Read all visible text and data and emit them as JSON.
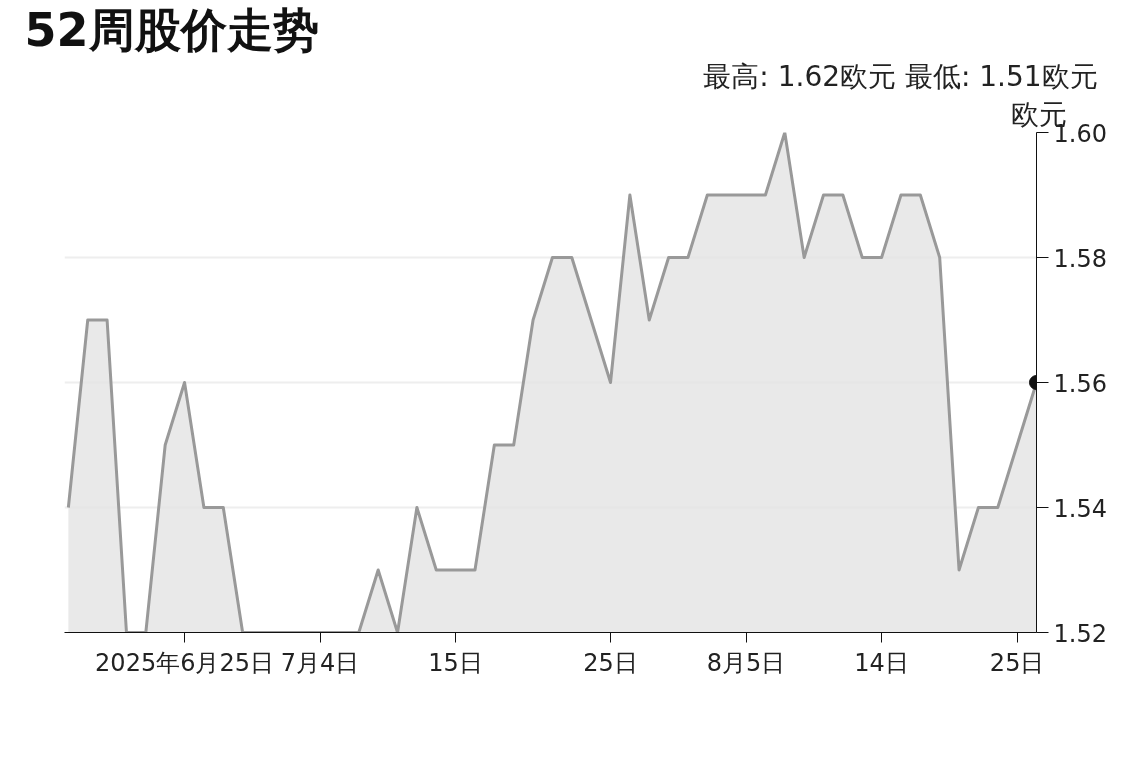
{
  "chart_data": {
    "type": "area",
    "title": "52周股价走势",
    "subtitle": "最高: 1.62欧元  最低: 1.51欧元",
    "ylabel": "欧元",
    "categories": [
      null,
      null,
      null,
      null,
      null,
      null,
      "2025年6月25日",
      null,
      null,
      null,
      null,
      null,
      null,
      "7月4日",
      null,
      null,
      null,
      null,
      null,
      null,
      "15日",
      null,
      null,
      null,
      null,
      null,
      null,
      null,
      "25日",
      null,
      null,
      null,
      null,
      null,
      null,
      "8月5日",
      null,
      null,
      null,
      null,
      null,
      null,
      "14日",
      null,
      null,
      null,
      null,
      null,
      null,
      "25日",
      null
    ],
    "series": [
      {
        "color": "#999999",
        "values": [
          1.54,
          1.57,
          1.57,
          1.52,
          1.52,
          1.55,
          1.56,
          1.54,
          1.54,
          1.52,
          1.52,
          1.52,
          1.52,
          1.52,
          1.52,
          1.52,
          1.53,
          1.52,
          1.54,
          1.53,
          1.53,
          1.53,
          1.55,
          1.55,
          1.57,
          1.58,
          1.58,
          1.57,
          1.56,
          1.59,
          1.57,
          1.58,
          1.58,
          1.59,
          1.59,
          1.59,
          1.59,
          1.6,
          1.58,
          1.59,
          1.59,
          1.58,
          1.58,
          1.59,
          1.59,
          1.58,
          1.53,
          1.54,
          1.54,
          1.55,
          1.56
        ]
      },
      {
        "type": "scatter",
        "color": "#111111",
        "marker": "circle",
        "values": [
          null,
          null,
          null,
          null,
          null,
          null,
          null,
          null,
          null,
          null,
          null,
          null,
          null,
          null,
          null,
          null,
          null,
          null,
          null,
          null,
          null,
          null,
          null,
          null,
          null,
          null,
          null,
          null,
          null,
          null,
          null,
          null,
          null,
          null,
          null,
          null,
          null,
          null,
          null,
          null,
          null,
          null,
          null,
          null,
          null,
          null,
          null,
          null,
          null,
          null,
          1.56
        ]
      }
    ],
    "ylim": [
      1.52,
      1.6
    ],
    "yticks": [
      {
        "value": 1.52,
        "label": "1.52"
      },
      {
        "value": 1.54,
        "label": "1.54"
      },
      {
        "value": 1.56,
        "label": "1.56"
      },
      {
        "value": 1.58,
        "label": "1.58"
      },
      {
        "value": 1.6,
        "label": "1.60"
      }
    ],
    "grid": "y",
    "marker": "none",
    "line_style": "solid"
  }
}
